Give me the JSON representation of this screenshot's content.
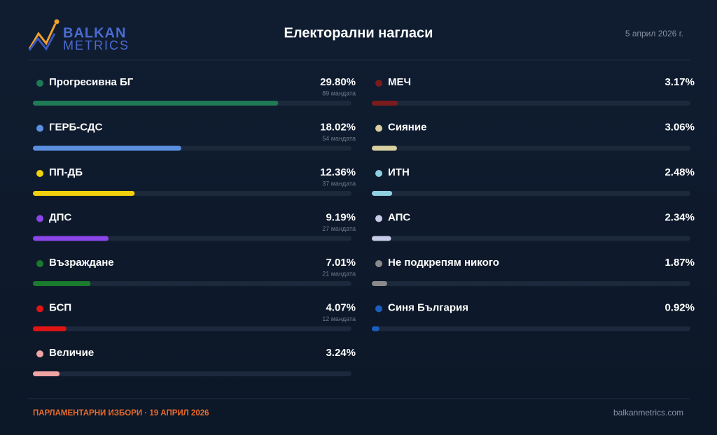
{
  "chart_data": {
    "type": "bar",
    "title": "Електорални нагласи",
    "date": "5 април 2026 г.",
    "brand": [
      "BALKAN",
      "METRICS"
    ],
    "footer_left": "ПАРЛАМЕНТАРНИ ИЗБОРИ · 19 АПРИЛ 2026",
    "footer_right": "balkanmetrics.com",
    "categories": [
      "Прогресивна БГ",
      "ГЕРБ-СДС",
      "ПП-ДБ",
      "ДПС",
      "Възраждане",
      "БСП",
      "Величие",
      "МЕЧ",
      "Сияние",
      "ИТН",
      "АПС",
      "Не подкрепям никого",
      "Синя България"
    ],
    "values": [
      29.8,
      18.02,
      12.36,
      9.19,
      7.01,
      4.07,
      3.24,
      3.17,
      3.06,
      2.48,
      2.34,
      1.87,
      0.92
    ],
    "value_labels": [
      "29.80%",
      "18.02%",
      "12.36%",
      "9.19%",
      "7.01%",
      "4.07%",
      "3.24%",
      "3.17%",
      "3.06%",
      "2.48%",
      "2.34%",
      "1.87%",
      "0.92%"
    ],
    "seats": [
      89,
      54,
      37,
      27,
      21,
      12,
      null,
      null,
      null,
      null,
      null,
      null,
      null
    ],
    "seat_labels": [
      "89 мандата",
      "54 мандата",
      "37 мандата",
      "27 мандата",
      "21 мандата",
      "12 мандата",
      null,
      null,
      null,
      null,
      null,
      null,
      null
    ],
    "colors": [
      "#1f7a55",
      "#5b8fe0",
      "#f2d00c",
      "#8b45e8",
      "#1a7a2e",
      "#e01414",
      "#f0a4a4",
      "#7a1c1c",
      "#d8d0a0",
      "#8ecfe0",
      "#c8cce8",
      "#8a8a8a",
      "#1a5fc0"
    ],
    "xlim": [
      0,
      38.7
    ]
  }
}
